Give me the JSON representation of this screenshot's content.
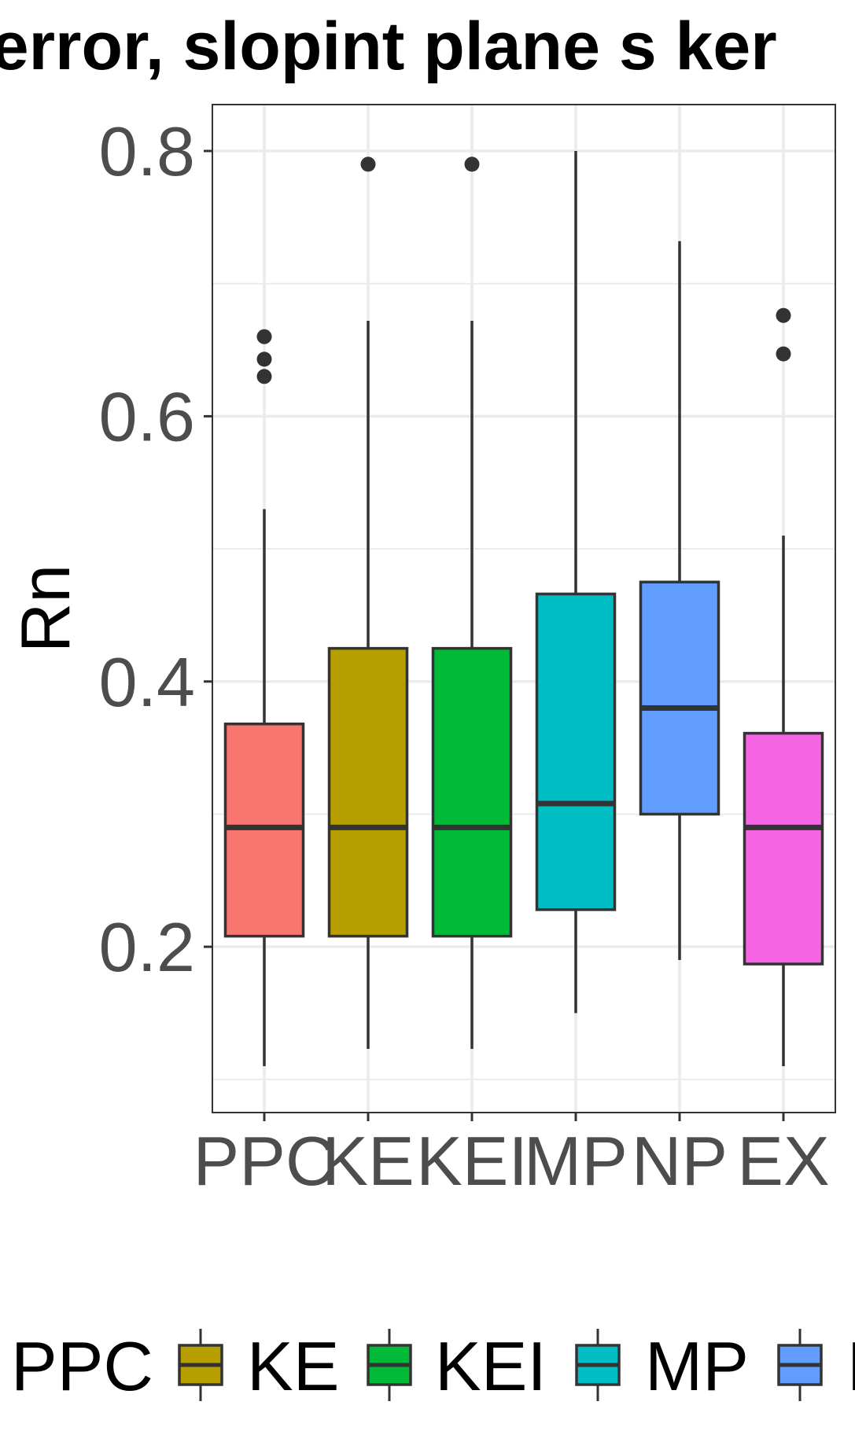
{
  "chart_data": {
    "type": "box",
    "title": "n error, slopint plane s ker",
    "xlabel": "",
    "ylabel": "Rn",
    "ylim": [
      0.075,
      0.835
    ],
    "yticks": [
      0.2,
      0.4,
      0.6,
      0.8
    ],
    "ytick_labels": [
      "0.2",
      "0.4",
      "0.6",
      "0.8"
    ],
    "grid": true,
    "legend_position": "bottom",
    "categories": [
      "PPC",
      "KE",
      "KEI",
      "MP",
      "NP",
      "EX"
    ],
    "boxes": [
      {
        "name": "PPC",
        "color": "#F8766D",
        "whisker_low": 0.11,
        "q1": 0.208,
        "median": 0.29,
        "q3": 0.368,
        "whisker_high": 0.53,
        "outliers": [
          0.66,
          0.643,
          0.63
        ]
      },
      {
        "name": "KE",
        "color": "#B79F00",
        "whisker_low": 0.123,
        "q1": 0.208,
        "median": 0.29,
        "q3": 0.425,
        "whisker_high": 0.672,
        "outliers": [
          0.79
        ]
      },
      {
        "name": "KEI",
        "color": "#00BA38",
        "whisker_low": 0.123,
        "q1": 0.208,
        "median": 0.29,
        "q3": 0.425,
        "whisker_high": 0.672,
        "outliers": [
          0.79
        ]
      },
      {
        "name": "MP",
        "color": "#00BFC4",
        "whisker_low": 0.15,
        "q1": 0.228,
        "median": 0.308,
        "q3": 0.466,
        "whisker_high": 0.8,
        "outliers": []
      },
      {
        "name": "NP",
        "color": "#619CFF",
        "whisker_low": 0.19,
        "q1": 0.3,
        "median": 0.38,
        "q3": 0.475,
        "whisker_high": 0.732,
        "outliers": []
      },
      {
        "name": "EX",
        "color": "#F564E3",
        "whisker_low": 0.11,
        "q1": 0.187,
        "median": 0.29,
        "q3": 0.361,
        "whisker_high": 0.51,
        "outliers": [
          0.676,
          0.647
        ]
      }
    ],
    "legend_labels": [
      "PPC",
      "KE",
      "KEI",
      "MP",
      "NP"
    ]
  }
}
